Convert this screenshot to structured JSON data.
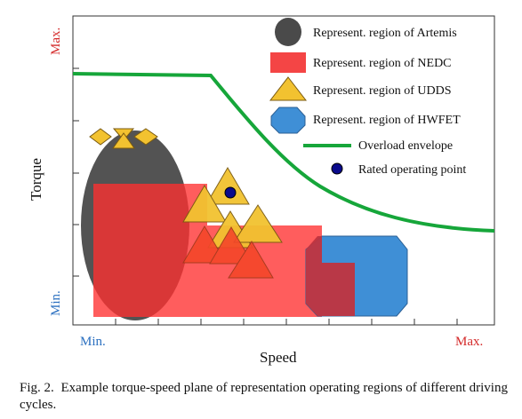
{
  "figure": {
    "axis_y_label": "Torque",
    "axis_x_label": "Speed",
    "y_max_label": "Max.",
    "y_min_label": "Min.",
    "x_min_label": "Min.",
    "x_max_label": "Max."
  },
  "legend": {
    "items": [
      {
        "key": "artemis",
        "label": "Represent. region of Artemis",
        "color": "#4a4a4a"
      },
      {
        "key": "nedc",
        "label": "Represent. region of NEDC",
        "color": "#f44545"
      },
      {
        "key": "udds",
        "label": "Represent. region of UDDS",
        "color": "#f2c230"
      },
      {
        "key": "hwfet",
        "label": "Represent. region of HWFET",
        "color": "#3f8fd6"
      },
      {
        "key": "envelope",
        "label": "Overload envelope",
        "color": "#16a63a"
      },
      {
        "key": "rated",
        "label": "Rated operating point",
        "color": "#0a0a8c"
      }
    ]
  },
  "colors": {
    "min_max_y": "#d42a2a",
    "min_x": "#2a6fc0",
    "max_x": "#d42a2a"
  },
  "caption": {
    "label": "Fig. 2.",
    "text": "Example torque-speed plane of representation operating regions of different driving cycles."
  }
}
